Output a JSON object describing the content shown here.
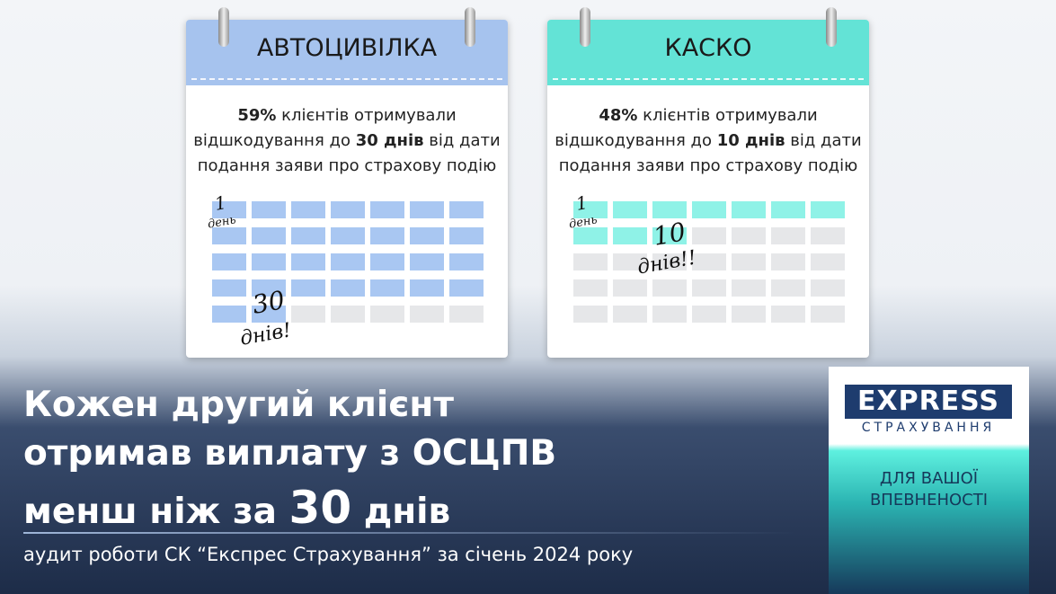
{
  "cards": [
    {
      "title": "АВТОЦИВІЛКА",
      "color": "#a6c3ee",
      "cell_color": "#a9c7f2",
      "days": 30,
      "lines": [
        [
          {
            "text": "59%",
            "bold": true
          },
          {
            "text": " клієнтів отримували"
          }
        ],
        [
          {
            "text": "відшкодування до "
          },
          {
            "text": "30 днів",
            "bold": true
          },
          {
            "text": " від дати"
          }
        ],
        [
          {
            "text": "подання заяви про страхову подію"
          }
        ]
      ],
      "start_note": [
        "1",
        "день"
      ],
      "end_note": [
        "30",
        "днів!"
      ]
    },
    {
      "title": "КАСКО",
      "color": "#63e3d6",
      "cell_color": "#8ff2e7",
      "days": 10,
      "lines": [
        [
          {
            "text": "48%",
            "bold": true
          },
          {
            "text": " клієнтів отримували"
          }
        ],
        [
          {
            "text": "відшкодування до "
          },
          {
            "text": "10 днів",
            "bold": true
          },
          {
            "text": " від дати"
          }
        ],
        [
          {
            "text": "подання заяви про страхову подію"
          }
        ]
      ],
      "start_note": [
        "1",
        "день"
      ],
      "end_note": [
        "10",
        "днів!!"
      ]
    }
  ],
  "headline": [
    [
      {
        "text": "Кожен другий клієнт"
      }
    ],
    [
      {
        "text": "отримав виплату з ОСЦПВ"
      }
    ],
    [
      {
        "text": "менш ніж за "
      },
      {
        "text": "30",
        "big": true
      },
      {
        "text": " днів"
      }
    ]
  ],
  "subtitle": "аудит роботи СК “Експрес Страхування” за січень 2024 року",
  "logo": {
    "name": "EXPRESS",
    "subname": "СТРАХУВАННЯ",
    "slogan": [
      "ДЛЯ ВАШОЇ",
      "ВПЕВНЕНОСТІ"
    ]
  }
}
